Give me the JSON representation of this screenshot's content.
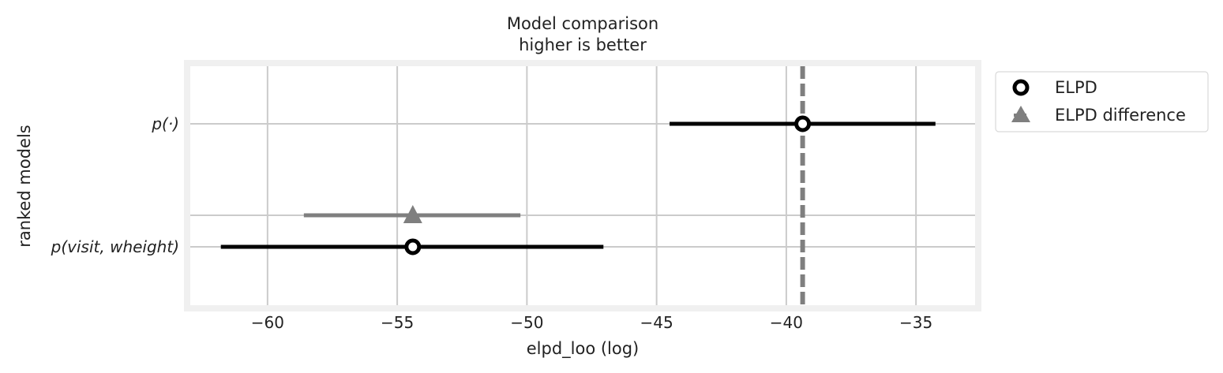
{
  "chart_data": {
    "type": "scatter",
    "title": "Model comparison",
    "subtitle": "higher is better",
    "xlabel": "elpd_loo (log)",
    "ylabel": "ranked models",
    "xlim": [
      -63.1,
      -32.6
    ],
    "xticks": [
      -60,
      -55,
      -50,
      -45,
      -40,
      -35
    ],
    "xtick_labels": [
      "−60",
      "−55",
      "−50",
      "−45",
      "−40",
      "−35"
    ],
    "grid": true,
    "legend_position": "outside-right",
    "reference_line": {
      "x": -39.37,
      "style": "dashed",
      "color": "#7f7f7f"
    },
    "models": [
      {
        "label": "p(·)",
        "elpd": -39.37,
        "lower": -44.5,
        "upper": -34.25
      },
      {
        "label": "p(visit, wheight)",
        "elpd": -54.4,
        "lower": -61.8,
        "upper": -47.05,
        "diff": -54.4,
        "diff_lower": -58.6,
        "diff_upper": -50.25
      }
    ],
    "series": [
      {
        "name": "ELPD",
        "marker": "open-circle",
        "color": "#000000"
      },
      {
        "name": "ELPD difference",
        "marker": "triangle",
        "color": "#7f7f7f"
      }
    ]
  }
}
